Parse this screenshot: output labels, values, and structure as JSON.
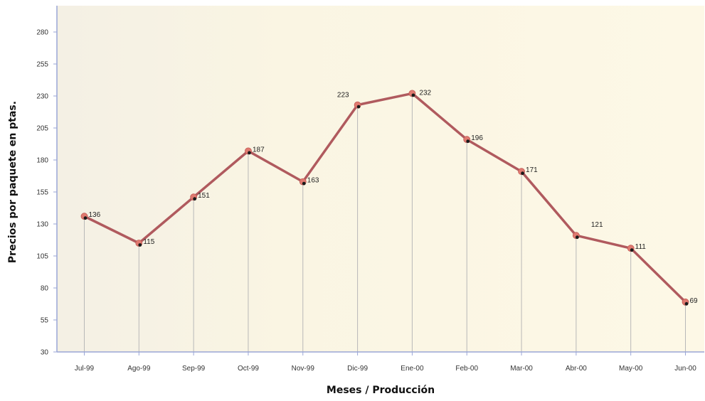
{
  "chart_data": {
    "type": "line",
    "title": "",
    "xlabel": "Meses / Producción",
    "ylabel": "Precios por paquete en ptas.",
    "categories": [
      "Jul-99",
      "Ago-99",
      "Sep-99",
      "Oct-99",
      "Nov-99",
      "Dic-99",
      "Ene-00",
      "Feb-00",
      "Mar-00",
      "Abr-00",
      "May-00",
      "Jun-00"
    ],
    "series": [
      {
        "values": [
          136,
          115,
          151,
          187,
          163,
          223,
          232,
          196,
          171,
          121,
          111,
          69
        ],
        "labels": [
          "136",
          "115",
          "151",
          "187",
          "163",
          "223",
          "232",
          "196",
          "171",
          "121",
          "111",
          "69"
        ]
      }
    ],
    "ylim": [
      30,
      280
    ],
    "yticks": [
      "30",
      "55",
      "80",
      "105",
      "130",
      "155",
      "180",
      "205",
      "230",
      "255",
      "280"
    ],
    "grid": "vertical drop lines",
    "colors": {
      "line": "#b05a5e",
      "marker": "#e07a70",
      "dropline": "#b8b8b8",
      "axis": "#9aa6d6"
    }
  }
}
